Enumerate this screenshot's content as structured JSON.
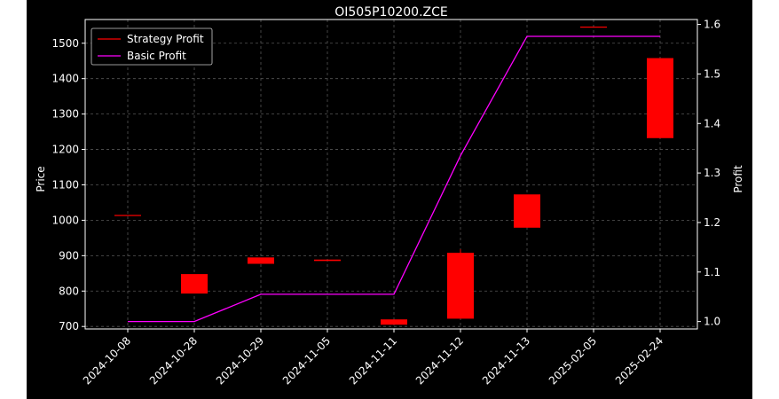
{
  "chart_data": {
    "type": "candlestick+line",
    "title": "OI505P10200.ZCE",
    "xlabel": "",
    "ylabel": "Price",
    "y2label": "Profit",
    "categories": [
      "2024-10-08",
      "2024-10-28",
      "2024-10-29",
      "2024-11-05",
      "2024-11-11",
      "2024-11-12",
      "2024-11-13",
      "2025-02-05",
      "2025-02-24"
    ],
    "ylim": [
      693,
      1567
    ],
    "y2lim": [
      0.985,
      1.61
    ],
    "yticks": [
      700,
      800,
      900,
      1000,
      1100,
      1200,
      1300,
      1400,
      1500
    ],
    "y2ticks": [
      1.0,
      1.1,
      1.2,
      1.3,
      1.4,
      1.5,
      1.6
    ],
    "grid": true,
    "legend_position": "top-left",
    "candles": [
      {
        "date": "2024-10-08",
        "open": 1015,
        "close": 1015,
        "high": 1015,
        "low": 1015
      },
      {
        "date": "2024-10-28",
        "open": 848,
        "close": 793,
        "high": 848,
        "low": 793
      },
      {
        "date": "2024-10-29",
        "open": 895,
        "close": 877,
        "high": 895,
        "low": 877
      },
      {
        "date": "2024-11-05",
        "open": 889,
        "close": 885,
        "high": 889,
        "low": 885
      },
      {
        "date": "2024-11-11",
        "open": 720,
        "close": 705,
        "high": 720,
        "low": 705
      },
      {
        "date": "2024-11-12",
        "open": 908,
        "close": 722,
        "high": 918,
        "low": 722
      },
      {
        "date": "2024-11-13",
        "open": 1073,
        "close": 979,
        "high": 1073,
        "low": 979
      },
      {
        "date": "2025-02-05",
        "open": 1547,
        "close": 1547,
        "high": 1547,
        "low": 1547
      },
      {
        "date": "2025-02-24",
        "open": 1458,
        "close": 1232,
        "high": 1458,
        "low": 1232
      }
    ],
    "series": [
      {
        "name": "Strategy Profit",
        "color": "#ff0000",
        "axis": "left",
        "kind": "candles"
      },
      {
        "name": "Basic Profit",
        "color": "#ff00ff",
        "axis": "right",
        "kind": "line",
        "values": [
          1.0,
          1.0,
          1.055,
          1.055,
          1.055,
          1.335,
          1.576,
          1.576,
          1.576
        ]
      }
    ]
  }
}
